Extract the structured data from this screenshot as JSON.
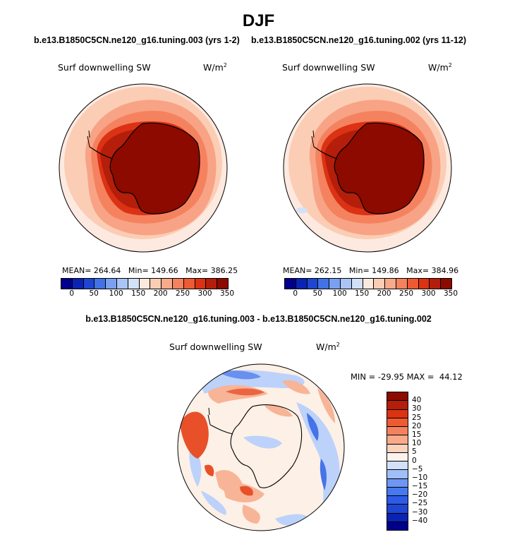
{
  "title": "DJF",
  "panels": [
    {
      "run_label": "b.e13.B1850C5CN.ne120_g16.tuning.003 (yrs 1-2)",
      "variable": "Surf downwelling SW",
      "units": "W/m",
      "units_exp": "2",
      "mean_label": "MEAN=",
      "mean": "264.64",
      "min_label": "Min=",
      "min": "149.66",
      "max_label": "Max=",
      "max": "386.25"
    },
    {
      "run_label": "b.e13.B1850C5CN.ne120_g16.tuning.002 (yrs 11-12)",
      "variable": "Surf downwelling SW",
      "units": "W/m",
      "units_exp": "2",
      "mean_label": "MEAN=",
      "mean": "262.15",
      "min_label": "Min=",
      "min": "149.86",
      "max_label": "Max=",
      "max": "384.96"
    }
  ],
  "abs_colorbar": {
    "ticks": [
      "0",
      "50",
      "100",
      "150",
      "200",
      "250",
      "300",
      "350"
    ],
    "colors": [
      "#00008c",
      "#0a23b4",
      "#1e46d2",
      "#4173e6",
      "#7aa0f0",
      "#aac4f5",
      "#d2e1fa",
      "#fbe9de",
      "#fbcdb4",
      "#f8aa8a",
      "#f5825f",
      "#ee5a32",
      "#dc3214",
      "#b41e0a",
      "#8c0a00"
    ]
  },
  "diff_panel": {
    "label": "b.e13.B1850C5CN.ne120_g16.tuning.003 - b.e13.B1850C5CN.ne120_g16.tuning.002",
    "variable": "Surf downwelling SW",
    "units": "W/m",
    "units_exp": "2",
    "min_label": "MIN =",
    "min": "-29.95",
    "max_label": "MAX =",
    "max": "44.12"
  },
  "diff_colorbar": {
    "ticks": [
      "40",
      "30",
      "25",
      "20",
      "15",
      "10",
      "5",
      "0",
      "−5",
      "−10",
      "−15",
      "−20",
      "−25",
      "−30",
      "−40"
    ],
    "colors": [
      "#00008c",
      "#0a23b4",
      "#1e46d2",
      "#2d5ae6",
      "#4678f0",
      "#6e96f5",
      "#a0bef8",
      "#d2e1fa",
      "#fdf3ec",
      "#fbd2bc",
      "#f8aa8a",
      "#f5825f",
      "#ee5a32",
      "#dc3214",
      "#b41e0a",
      "#8c0a00"
    ]
  },
  "colors": {
    "ice": "#8c0a00",
    "ring_inner": "#b41e0a",
    "ring_mid": "#dc3214",
    "ring_outer": "#f5825f",
    "ocean_far": "#fbcdb4",
    "ocean_edge": "#fde9df",
    "diff_bg": "#fdf0e6",
    "diff_red": "#e8502a",
    "diff_pink": "#f8b496",
    "diff_blue": "#4673e8",
    "diff_lblue": "#bcd2fa"
  }
}
